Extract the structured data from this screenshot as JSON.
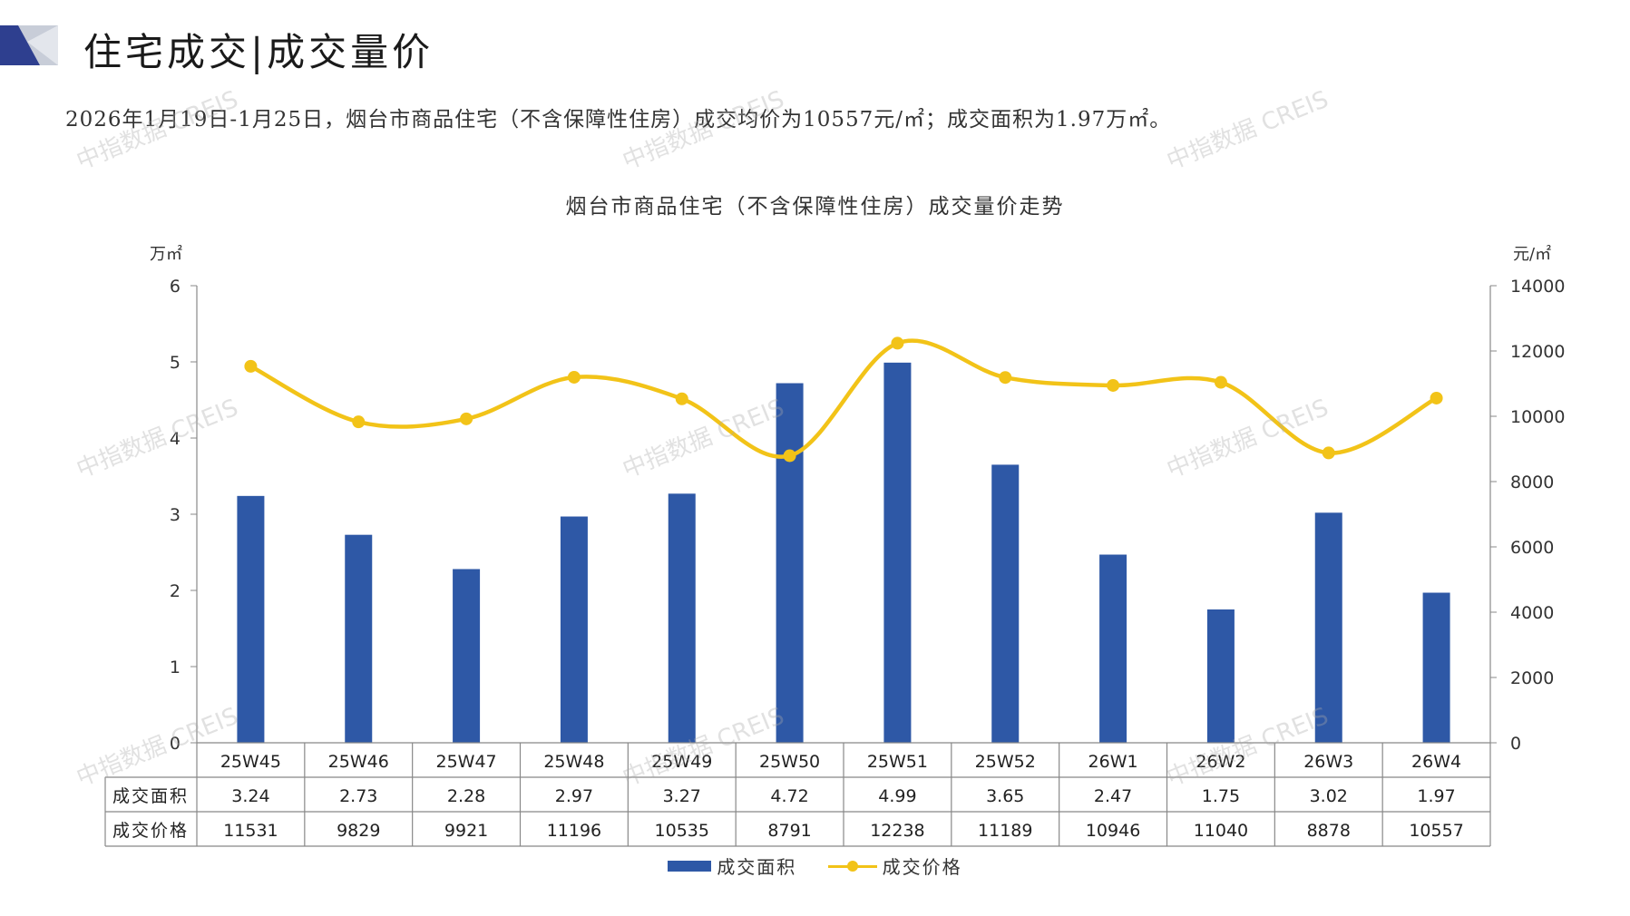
{
  "header": {
    "title_left": "住宅成交",
    "title_sep": "|",
    "title_right": "成交量价"
  },
  "summary": "2026年1月19日-1月25日，烟台市商品住宅（不含保障性住房）成交均价为10557元/㎡；成交面积为1.97万㎡。",
  "watermark": "中指数据 CREIS",
  "colors": {
    "bar": "#2E58A6",
    "line": "#F2C318",
    "logo_dark": "#2E3F8F",
    "logo_light": "#C8CDD8"
  },
  "chart_data": {
    "type": "bar",
    "title": "烟台市商品住宅（不含保障性住房）成交量价走势",
    "categories": [
      "25W45",
      "25W46",
      "25W47",
      "25W48",
      "25W49",
      "25W50",
      "25W51",
      "25W52",
      "26W1",
      "26W2",
      "26W3",
      "26W4"
    ],
    "series": [
      {
        "name": "成交面积",
        "type": "bar",
        "axis": "left",
        "values": [
          3.24,
          2.73,
          2.28,
          2.97,
          3.27,
          4.72,
          4.99,
          3.65,
          2.47,
          1.75,
          3.02,
          1.97
        ],
        "display": [
          "3.24",
          "2.73",
          "2.28",
          "2.97",
          "3.27",
          "4.72",
          "4.99",
          "3.65",
          "2.47",
          "1.75",
          "3.02",
          "1.97"
        ]
      },
      {
        "name": "成交价格",
        "type": "line",
        "axis": "right",
        "values": [
          11531,
          9829,
          9921,
          11196,
          10535,
          8791,
          12238,
          11189,
          10946,
          11040,
          8878,
          10557
        ],
        "display": [
          "11531",
          "9829",
          "9921",
          "11196",
          "10535",
          "8791",
          "12238",
          "11189",
          "10946",
          "11040",
          "8878",
          "10557"
        ]
      }
    ],
    "y_left": {
      "unit": "万㎡",
      "ylim": [
        0,
        6
      ],
      "ticks": [
        "0",
        "1",
        "2",
        "3",
        "4",
        "5",
        "6"
      ]
    },
    "y_right": {
      "unit": "元/㎡",
      "ylim": [
        0,
        14000
      ],
      "ticks": [
        "0",
        "2000",
        "4000",
        "6000",
        "8000",
        "10000",
        "12000",
        "14000"
      ]
    },
    "legend": {
      "position": "bottom",
      "entries": [
        "成交面积",
        "成交价格"
      ]
    },
    "data_table": true,
    "grid": false
  }
}
